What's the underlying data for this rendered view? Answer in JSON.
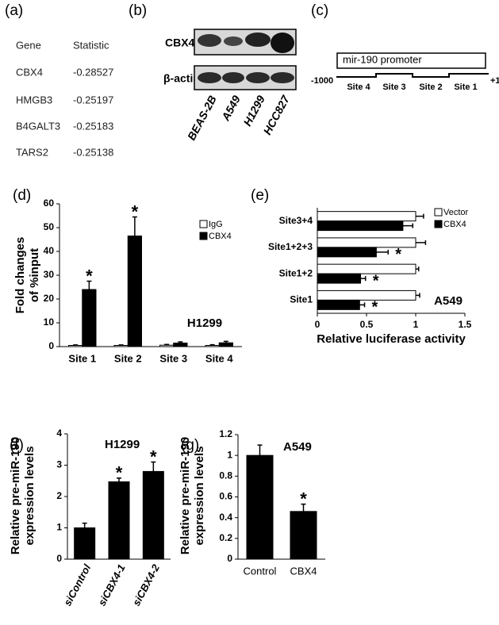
{
  "panel_a": {
    "label": "(a)",
    "header": [
      "Gene",
      "Statistic"
    ],
    "rows": [
      [
        "CBX4",
        "-0.28527"
      ],
      [
        "HMGB3",
        "-0.25197"
      ],
      [
        "B4GALT3",
        "-0.25183"
      ],
      [
        "TARS2",
        "-0.25138"
      ]
    ]
  },
  "panel_b": {
    "label": "(b)",
    "proteins": [
      "CBX4",
      "β-actin"
    ],
    "cell_lines": [
      "BEAS-2B",
      "A549",
      "H1299",
      "HCC827"
    ]
  },
  "panel_c": {
    "label": "(c)",
    "promoter": "mir-190 promoter",
    "start": "-1000",
    "end": "+1",
    "sites": [
      "Site 4",
      "Site 3",
      "Site 2",
      "Site 1"
    ]
  },
  "chart_data": [
    {
      "panel": "(d)",
      "type": "bar",
      "annotation": "H1299",
      "ylabel": [
        "Fold changes",
        "of %input"
      ],
      "categories": [
        "Site 1",
        "Site 2",
        "Site 3",
        "Site 4"
      ],
      "series": [
        {
          "name": "IgG",
          "color": "#ffffff",
          "values": [
            0.5,
            0.5,
            0.6,
            0.5
          ],
          "errors": [
            0.2,
            0.2,
            0.3,
            0.3
          ]
        },
        {
          "name": "CBX4",
          "color": "#000000",
          "values": [
            24,
            46.5,
            1.5,
            1.6
          ],
          "errors": [
            3.5,
            8,
            0.5,
            0.6
          ],
          "significance": [
            "*",
            "*",
            null,
            null
          ]
        }
      ],
      "ylim": [
        0,
        60
      ],
      "yticks": [
        0,
        10,
        20,
        30,
        40,
        50,
        60
      ],
      "legend": "upper right"
    },
    {
      "panel": "(e)",
      "type": "bar",
      "orientation": "horizontal",
      "annotation": "A549",
      "xlabel": "Relative luciferase activity",
      "categories": [
        "Site1",
        "Site1+2",
        "Site1+2+3",
        "Site3+4"
      ],
      "series": [
        {
          "name": "Vector",
          "color": "#ffffff",
          "values": [
            1,
            1,
            1,
            1
          ],
          "errors": [
            0.04,
            0.03,
            0.1,
            0.08
          ]
        },
        {
          "name": "CBX4",
          "color": "#000000",
          "values": [
            0.43,
            0.44,
            0.6,
            0.87
          ],
          "errors": [
            0.05,
            0.05,
            0.12,
            0.1
          ],
          "significance": [
            "*",
            "*",
            "*",
            null
          ]
        }
      ],
      "xlim": [
        0,
        1.5
      ],
      "xticks": [
        0,
        0.5,
        1,
        1.5
      ],
      "legend": "upper right"
    },
    {
      "panel": "(f)",
      "type": "bar",
      "title": "H1299",
      "ylabel": [
        "Relative pre-miR-190",
        "expression levels"
      ],
      "categories": [
        "siControl",
        "siCBX4-1",
        "siCBX4-2"
      ],
      "color": "#000000",
      "values": [
        1,
        2.47,
        2.8
      ],
      "errors": [
        0.15,
        0.12,
        0.3
      ],
      "significance": [
        null,
        "*",
        "*"
      ],
      "ylim": [
        0,
        4
      ],
      "yticks": [
        0,
        1,
        2,
        3,
        4
      ]
    },
    {
      "panel": "(g)",
      "type": "bar",
      "title": "A549",
      "ylabel": [
        "Relative pre-miR-190",
        "expression levels"
      ],
      "categories": [
        "Control",
        "CBX4"
      ],
      "color": "#000000",
      "values": [
        1,
        0.46
      ],
      "errors": [
        0.1,
        0.07
      ],
      "significance": [
        null,
        "*"
      ],
      "ylim": [
        0,
        1.2
      ],
      "yticks": [
        0,
        0.2,
        0.4,
        0.6,
        0.8,
        1,
        1.2
      ]
    }
  ]
}
